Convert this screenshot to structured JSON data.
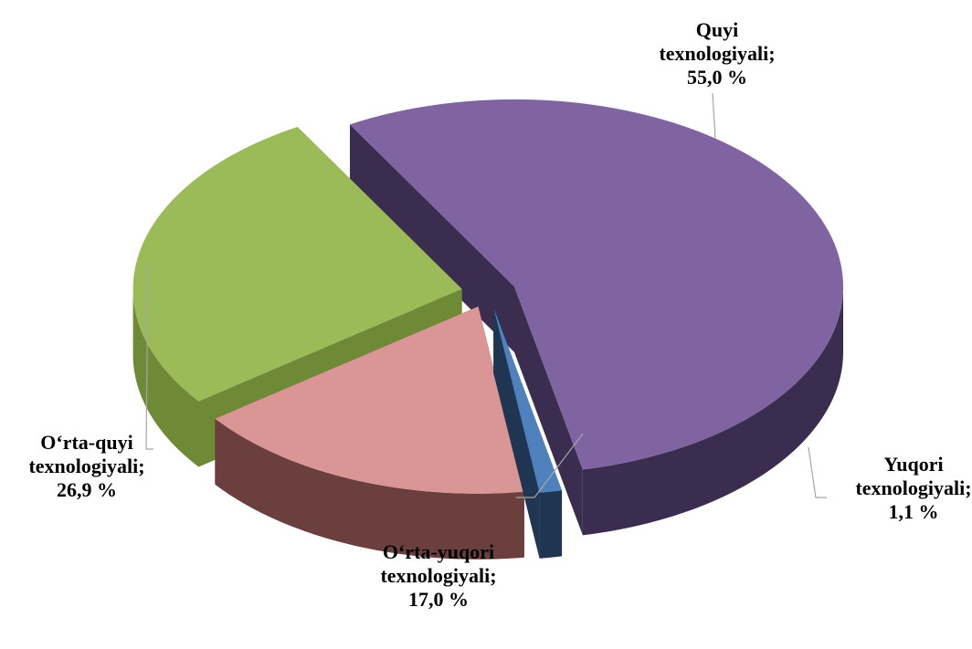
{
  "chart_data": {
    "type": "pie3d",
    "categories": [
      "Quyi texnologiyali",
      "Yuqori texnologiyali",
      "O‘rta-yuqori texnologiyali",
      "O‘rta-quyi texnologiyali"
    ],
    "values": [
      55.0,
      1.1,
      17.0,
      26.9
    ],
    "value_labels": [
      "55,0 %",
      "1,1 %",
      "17,0 %",
      "26,9 %"
    ],
    "label_separator": ";",
    "colors": [
      "#8064a2",
      "#4f81bd",
      "#d99694",
      "#9bbb59"
    ],
    "side_colors": [
      "#3b2d4f",
      "#1f3552",
      "#6b3f3e",
      "#6f8a37"
    ]
  }
}
